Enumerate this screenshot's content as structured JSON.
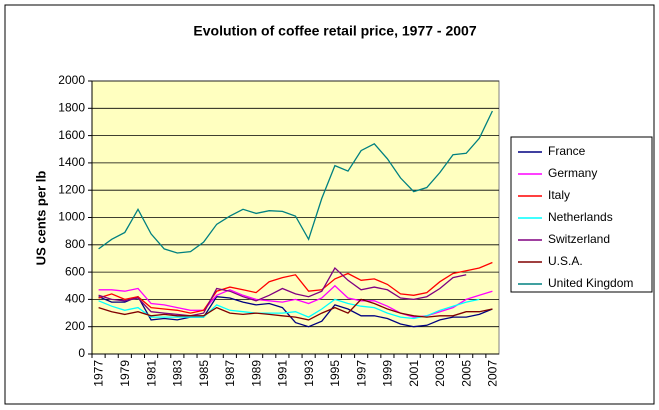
{
  "chart_data": {
    "type": "line",
    "title": "Evolution of coffee retail price, 1977 - 2007",
    "y_label": "US cents per lb",
    "categories": [
      "1977",
      null,
      "1979",
      null,
      "1981",
      null,
      "1983",
      null,
      "1985",
      null,
      "1987",
      null,
      "1989",
      null,
      "1991",
      null,
      "1993",
      null,
      "1995",
      null,
      "1997",
      null,
      "1999",
      null,
      "2001",
      null,
      "2003",
      null,
      "2005",
      null,
      "2007"
    ],
    "ylim": [
      0,
      2000
    ],
    "yticks": [
      0,
      200,
      400,
      600,
      800,
      1000,
      1200,
      1400,
      1600,
      1800,
      2000
    ],
    "grid": true,
    "legend": "right",
    "series": [
      {
        "name": "France",
        "color": "#000080",
        "values": [
          420,
          380,
          380,
          420,
          250,
          260,
          250,
          270,
          270,
          420,
          410,
          380,
          360,
          370,
          340,
          230,
          200,
          240,
          360,
          330,
          280,
          280,
          260,
          220,
          200,
          210,
          250,
          270,
          270,
          290,
          330
        ]
      },
      {
        "name": "Germany",
        "color": "#ff00ff",
        "values": [
          470,
          470,
          460,
          480,
          370,
          360,
          340,
          320,
          320,
          430,
          470,
          430,
          400,
          390,
          380,
          400,
          370,
          410,
          500,
          410,
          390,
          390,
          350,
          300,
          270,
          280,
          310,
          340,
          400,
          430,
          460
        ]
      },
      {
        "name": "Italy",
        "color": "#ff0000",
        "values": [
          410,
          440,
          400,
          420,
          340,
          330,
          320,
          300,
          320,
          460,
          490,
          470,
          450,
          530,
          560,
          580,
          460,
          470,
          550,
          590,
          540,
          550,
          510,
          440,
          430,
          450,
          530,
          590,
          610,
          630,
          670
        ]
      },
      {
        "name": "Netherlands",
        "color": "#00ffff",
        "values": [
          390,
          350,
          320,
          340,
          270,
          270,
          270,
          270,
          270,
          360,
          320,
          310,
          300,
          300,
          300,
          310,
          270,
          330,
          400,
          370,
          350,
          340,
          300,
          270,
          260,
          280,
          320,
          350,
          380,
          400,
          null
        ]
      },
      {
        "name": "Switzerland",
        "color": "#800080",
        "values": [
          430,
          400,
          390,
          410,
          310,
          300,
          290,
          280,
          300,
          480,
          460,
          420,
          390,
          430,
          480,
          440,
          420,
          460,
          630,
          540,
          470,
          490,
          470,
          410,
          400,
          420,
          480,
          560,
          580,
          null,
          null
        ]
      },
      {
        "name": "U.S.A.",
        "color": "#800000",
        "values": [
          340,
          310,
          290,
          310,
          280,
          290,
          280,
          280,
          280,
          340,
          300,
          290,
          300,
          290,
          280,
          270,
          250,
          300,
          340,
          300,
          400,
          370,
          330,
          300,
          280,
          270,
          280,
          280,
          310,
          310,
          330
        ]
      },
      {
        "name": "United Kingdom",
        "color": "#008080",
        "values": [
          770,
          840,
          890,
          1060,
          880,
          770,
          740,
          750,
          820,
          950,
          1010,
          1060,
          1030,
          1050,
          1045,
          1010,
          840,
          1140,
          1380,
          1340,
          1490,
          1540,
          1430,
          1290,
          1190,
          1220,
          1330,
          1460,
          1470,
          1580,
          1780
        ]
      }
    ]
  }
}
